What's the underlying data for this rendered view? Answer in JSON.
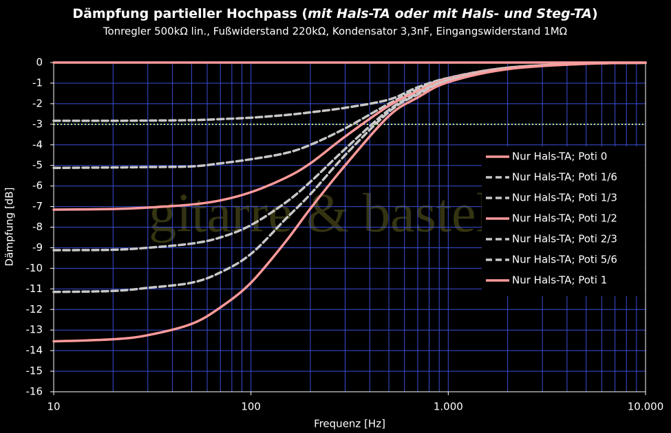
{
  "chart_data": {
    "type": "line",
    "title_parts": [
      "Dämpfung partieller Hochpass (",
      "mit Hals-TA oder mit Hals- und Steg-TA",
      ")"
    ],
    "subtitle": "Tonregler 500kΩ lin., Fußwiderstand 220kΩ, Kondensator 3,3nF, Eingangswiderstand 1MΩ",
    "watermark": "gitarre & basteln",
    "x_label": "Frequenz [Hz]",
    "y_label": "Dämpfung [dB]",
    "x_scale": "log",
    "xlim": [
      10,
      10000
    ],
    "xticks": [
      10,
      100,
      {
        "value": 1000,
        "label": "1.000"
      },
      {
        "value": 10000,
        "label": "10.000"
      }
    ],
    "x_minor_ticks": [
      20,
      30,
      40,
      50,
      60,
      70,
      80,
      90,
      200,
      300,
      400,
      500,
      600,
      700,
      800,
      900,
      2000,
      3000,
      4000,
      5000,
      6000,
      7000,
      8000,
      9000
    ],
    "ylim": [
      -16,
      0
    ],
    "yticks": [
      0,
      -1,
      -2,
      -3,
      -4,
      -5,
      -6,
      -7,
      -8,
      -9,
      -10,
      -11,
      -12,
      -13,
      -14,
      -15,
      -16
    ],
    "grid": true,
    "grid_color": "#3b4fd8",
    "reference_line": {
      "value": -3,
      "color": "#c8f07a"
    },
    "legend": "right",
    "x": [
      10,
      20,
      30,
      50,
      70,
      100,
      150,
      200,
      300,
      500,
      700,
      1000,
      2000,
      5000,
      10000
    ],
    "series": [
      {
        "name": "Nur Hals-TA; Poti 0",
        "color": "#ff9a9a",
        "style": "solid",
        "values": [
          0,
          0,
          0,
          0,
          0,
          0,
          0,
          0,
          0,
          0,
          0,
          0,
          0,
          0,
          0
        ]
      },
      {
        "name": "Nur Hals-TA; Poti 1/6",
        "color": "#c8c8c8",
        "style": "dashed",
        "values": [
          -2.83,
          -2.83,
          -2.82,
          -2.8,
          -2.75,
          -2.68,
          -2.55,
          -2.42,
          -2.2,
          -1.8,
          -1.2,
          -0.75,
          -0.25,
          -0.05,
          -0.01
        ]
      },
      {
        "name": "Nur Hals-TA; Poti 1/3",
        "color": "#c8c8c8",
        "style": "dashed",
        "values": [
          -5.12,
          -5.1,
          -5.08,
          -5.05,
          -4.9,
          -4.7,
          -4.4,
          -4.0,
          -3.2,
          -2.0,
          -1.3,
          -0.75,
          -0.25,
          -0.05,
          -0.01
        ]
      },
      {
        "name": "Nur Hals-TA; Poti 1/2",
        "color": "#ff9a9a",
        "style": "solid",
        "values": [
          -7.15,
          -7.12,
          -7.05,
          -6.9,
          -6.7,
          -6.3,
          -5.6,
          -4.9,
          -3.6,
          -2.1,
          -1.4,
          -0.8,
          -0.28,
          -0.05,
          -0.01
        ]
      },
      {
        "name": "Nur Hals-TA; Poti 2/3",
        "color": "#c8c8c8",
        "style": "dashed",
        "values": [
          -9.12,
          -9.1,
          -9.0,
          -8.8,
          -8.5,
          -7.9,
          -6.8,
          -5.8,
          -4.2,
          -2.3,
          -1.5,
          -0.85,
          -0.3,
          -0.05,
          -0.01
        ]
      },
      {
        "name": "Nur Hals-TA; Poti 5/6",
        "color": "#c8c8c8",
        "style": "dashed",
        "values": [
          -11.15,
          -11.1,
          -10.95,
          -10.7,
          -10.2,
          -9.3,
          -7.6,
          -6.4,
          -4.5,
          -2.4,
          -1.55,
          -0.9,
          -0.31,
          -0.06,
          -0.01
        ]
      },
      {
        "name": "Nur Hals-TA; Poti 1",
        "color": "#ff9a9a",
        "style": "solid",
        "values": [
          -13.55,
          -13.45,
          -13.25,
          -12.7,
          -11.9,
          -10.7,
          -8.7,
          -7.1,
          -5.0,
          -2.6,
          -1.7,
          -0.95,
          -0.32,
          -0.06,
          -0.01
        ]
      }
    ]
  }
}
